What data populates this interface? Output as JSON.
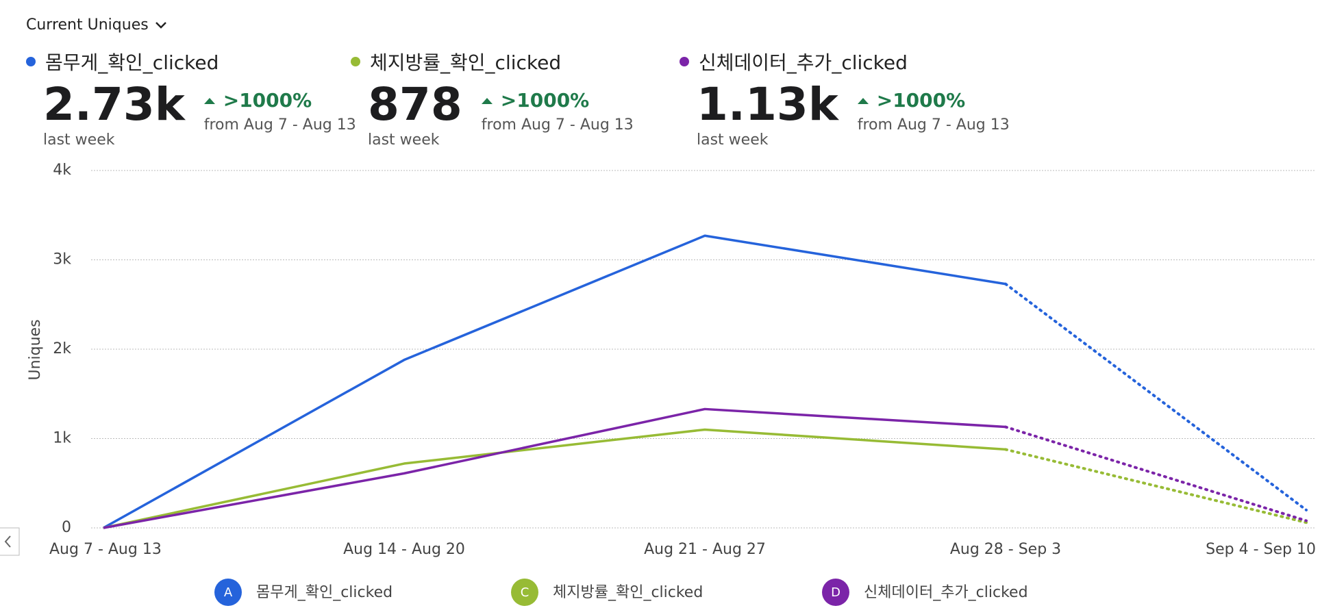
{
  "dropdown": "Current Uniques",
  "summary": [
    {
      "value_label": "2.73k",
      "caption": "last week",
      "change": ">1000%",
      "comparison": "from Aug 7 - Aug 13"
    },
    {
      "value_label": "878",
      "caption": "last week",
      "change": ">1000%",
      "comparison": "from Aug 7 - Aug 13"
    },
    {
      "value_label": "1.13k",
      "caption": "last week",
      "change": ">1000%",
      "comparison": "from Aug 7 - Aug 13"
    }
  ],
  "chart_data": {
    "type": "line",
    "y_label": "Uniques",
    "categories": [
      "Aug 7 - Aug 13",
      "Aug 14 - Aug 20",
      "Aug 21 - Aug 27",
      "Aug 28 - Sep 3",
      "Sep 4 - Sep 10"
    ],
    "series": [
      {
        "name": "몸무게_확인_clicked",
        "letter": "A",
        "color": "#2563db",
        "values": [
          0,
          1880,
          3270,
          2730,
          200
        ]
      },
      {
        "name": "체지방률_확인_clicked",
        "letter": "C",
        "color": "#97bb35",
        "values": [
          0,
          720,
          1100,
          878,
          60
        ]
      },
      {
        "name": "신체데이터_추가_clicked",
        "letter": "D",
        "color": "#7b24a8",
        "values": [
          0,
          610,
          1330,
          1130,
          80
        ]
      }
    ],
    "ylim": [
      0,
      4000
    ],
    "yticks": [
      0,
      {
        "value": 1000,
        "label": "1k"
      },
      {
        "value": 2000,
        "label": "2k"
      },
      {
        "value": 3000,
        "label": "3k"
      },
      {
        "value": 4000,
        "label": "4k"
      }
    ],
    "grid": true,
    "partial_last_period": true
  }
}
